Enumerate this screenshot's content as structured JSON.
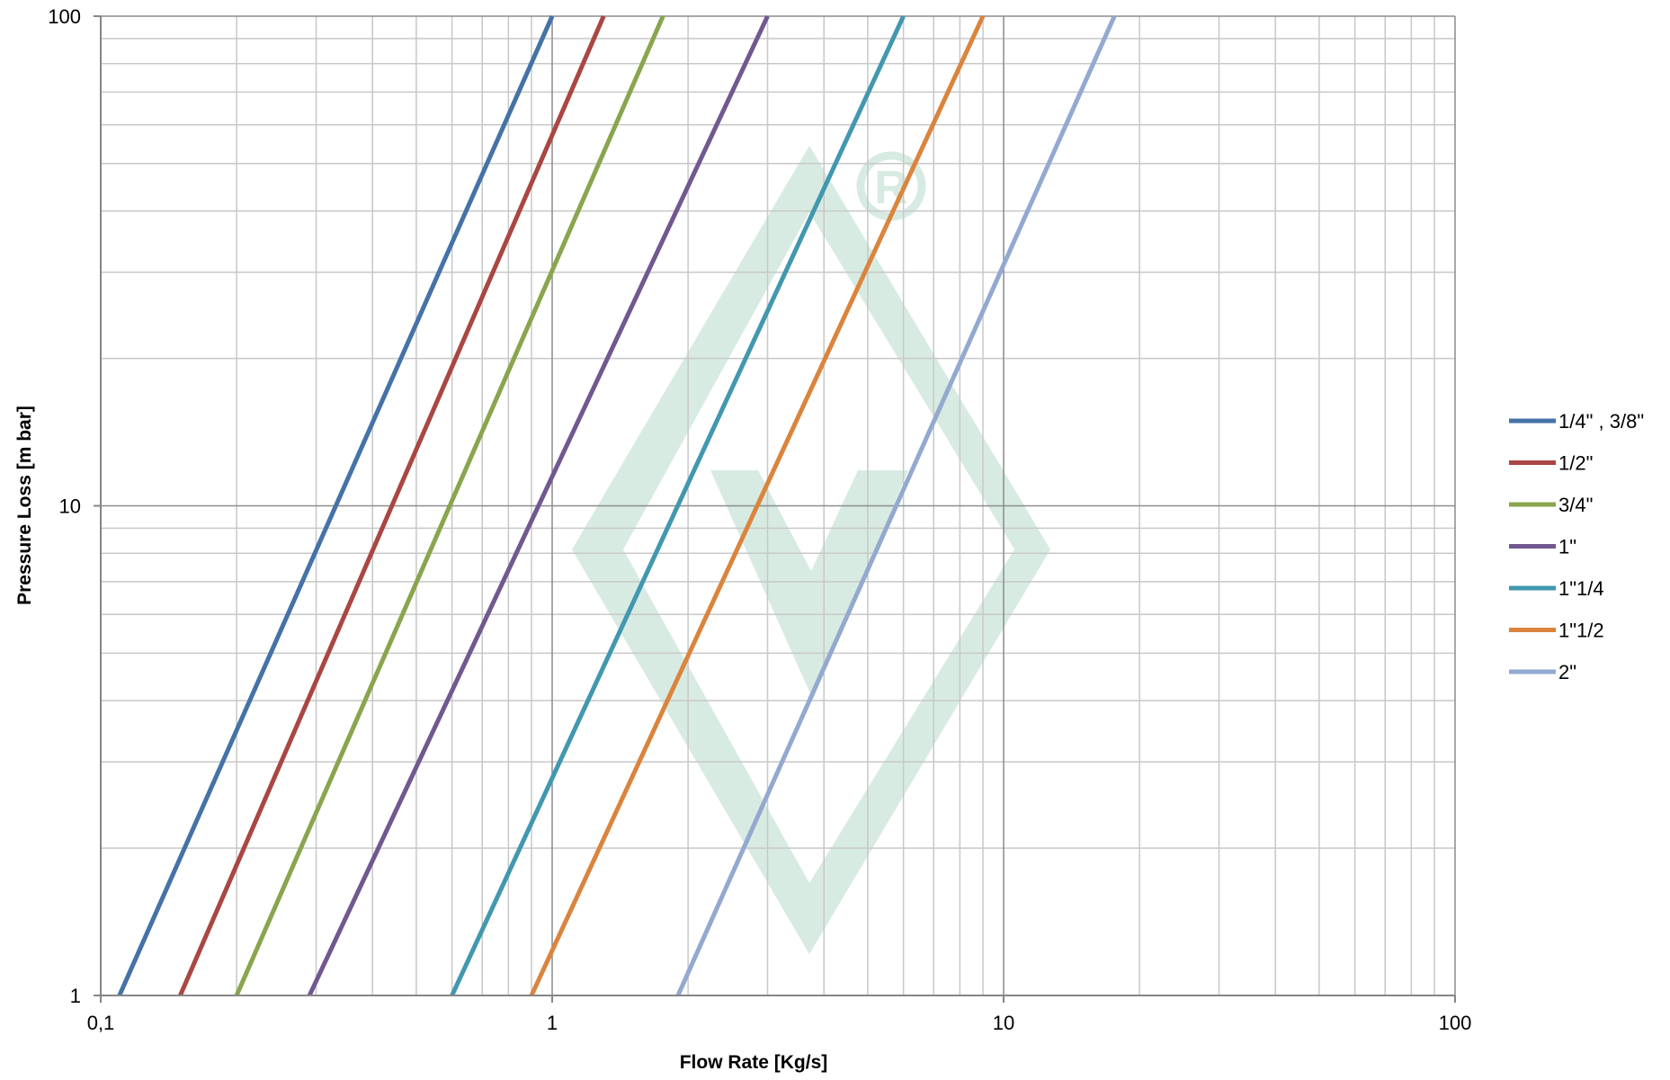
{
  "chart_data": {
    "type": "line",
    "title": "",
    "xlabel": "Flow Rate [Kg/s]",
    "ylabel": "Pressure Loss [m bar]",
    "xscale": "log",
    "yscale": "log",
    "xlim": [
      0.1,
      100
    ],
    "ylim": [
      1,
      100
    ],
    "grid": true,
    "legend_position": "right",
    "x_ticks": [
      {
        "value": 0.1,
        "label": "0,1"
      },
      {
        "value": 1,
        "label": "1"
      },
      {
        "value": 10,
        "label": "10"
      },
      {
        "value": 100,
        "label": "100"
      }
    ],
    "y_ticks": [
      {
        "value": 1,
        "label": "1"
      },
      {
        "value": 10,
        "label": "10"
      },
      {
        "value": 100,
        "label": "100"
      }
    ],
    "series": [
      {
        "name": "1/4\" , 3/8\"",
        "color": "#4572A7",
        "x": [
          0.11,
          1.0
        ],
        "y": [
          1,
          100
        ]
      },
      {
        "name": "1/2\"",
        "color": "#AA4643",
        "x": [
          0.15,
          1.3
        ],
        "y": [
          1,
          100
        ]
      },
      {
        "name": "3/4\"",
        "color": "#89A54E",
        "x": [
          0.2,
          1.76
        ],
        "y": [
          1,
          100
        ]
      },
      {
        "name": "1\"",
        "color": "#71588F",
        "x": [
          0.29,
          3.0
        ],
        "y": [
          1,
          100
        ]
      },
      {
        "name": "1\"1/4",
        "color": "#4198AF",
        "x": [
          0.6,
          6.0
        ],
        "y": [
          1,
          100
        ]
      },
      {
        "name": "1\"1/2",
        "color": "#DB843D",
        "x": [
          0.9,
          9.0
        ],
        "y": [
          1,
          100
        ]
      },
      {
        "name": "2\"",
        "color": "#93A9CF",
        "x": [
          1.9,
          17.6
        ],
        "y": [
          1,
          100
        ]
      }
    ],
    "watermark_color": "#D8EBE2"
  }
}
